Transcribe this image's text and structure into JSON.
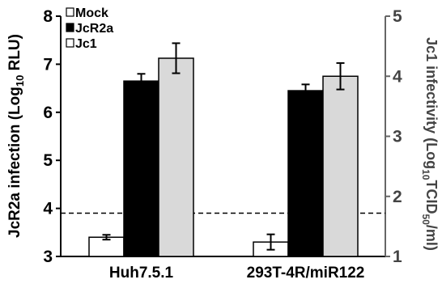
{
  "chart_data": {
    "type": "bar",
    "categories": [
      "Huh7.5.1",
      "293T-4R/miR122"
    ],
    "series": [
      {
        "name": "Mock",
        "axis": "left",
        "values": [
          3.4,
          3.3
        ],
        "errors": [
          0.05,
          0.16
        ],
        "fill": "#ffffff",
        "stroke": "#000000"
      },
      {
        "name": "JcR2a",
        "axis": "left",
        "values": [
          6.65,
          6.45
        ],
        "errors": [
          0.15,
          0.13
        ],
        "fill": "#000000",
        "stroke": "#000000"
      },
      {
        "name": "Jc1",
        "axis": "right",
        "values": [
          4.3,
          4.0
        ],
        "errors": [
          0.25,
          0.22
        ],
        "fill": "#d9d9d9",
        "stroke": "#000000"
      }
    ],
    "ylabel_left": {
      "main": "JcR2a infection (Log",
      "sub": "10",
      "tail": " RLU)"
    },
    "ylabel_right": {
      "main": "Jc1 infectivity (Log",
      "sub1": "10",
      "mid": "TCID",
      "sub2": "50",
      "tail": "/ml)"
    },
    "ylim_left": [
      3,
      8
    ],
    "yticks_left": [
      "3",
      "4",
      "5",
      "6",
      "7",
      "8"
    ],
    "ylim_right": [
      1,
      5
    ],
    "yticks_right": [
      "1",
      "2",
      "3",
      "4",
      "5"
    ],
    "threshold": {
      "axis": "left",
      "value": 3.9,
      "style": "dashed"
    },
    "legend_position": "top-left",
    "grid": false,
    "colors": {
      "axis_right": "#666666",
      "mock": "#ffffff",
      "jcr2a": "#000000",
      "jc1": "#d9d9d9"
    }
  }
}
